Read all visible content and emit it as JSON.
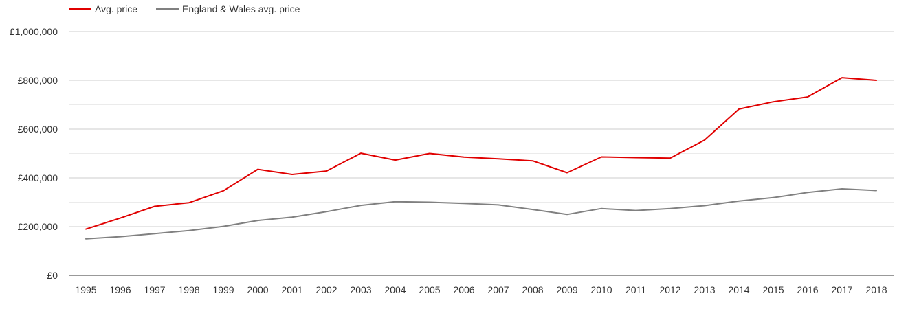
{
  "chart_data": {
    "type": "line",
    "title": "",
    "xlabel": "",
    "ylabel": "",
    "x": [
      "1995",
      "1996",
      "1997",
      "1998",
      "1999",
      "2000",
      "2001",
      "2002",
      "2003",
      "2004",
      "2005",
      "2006",
      "2007",
      "2008",
      "2009",
      "2010",
      "2011",
      "2012",
      "2013",
      "2014",
      "2015",
      "2016",
      "2017",
      "2018"
    ],
    "ylim": [
      0,
      1000000
    ],
    "y_ticks": [
      0,
      200000,
      400000,
      600000,
      800000,
      1000000
    ],
    "y_tick_labels": [
      "£0",
      "£200,000",
      "£400,000",
      "£600,000",
      "£800,000",
      "£1,000,000"
    ],
    "grid": true,
    "legend_position": "top-left",
    "series": [
      {
        "name": "Avg. price",
        "color": "#e00000",
        "values": [
          190000,
          235000,
          283000,
          298000,
          347000,
          435000,
          414000,
          428000,
          501000,
          473000,
          500000,
          485000,
          478000,
          470000,
          421000,
          486000,
          483000,
          481000,
          555000,
          682000,
          712000,
          732000,
          811000,
          800000
        ]
      },
      {
        "name": "England & Wales avg. price",
        "color": "#808080",
        "values": [
          150000,
          159000,
          171000,
          184000,
          201000,
          225000,
          239000,
          261000,
          287000,
          302000,
          300000,
          295000,
          289000,
          270000,
          250000,
          274000,
          266000,
          274000,
          286000,
          305000,
          319000,
          340000,
          355000,
          348000
        ]
      }
    ]
  }
}
